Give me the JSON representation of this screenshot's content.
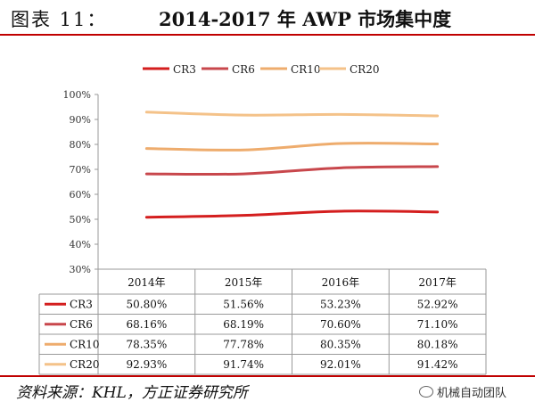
{
  "header": {
    "fig_label": "图表 11：",
    "title": "2014-2017 年 AWP 市场集中度"
  },
  "source": "资料来源：KHL，方正证券研究所",
  "watermark": "机械自动团队",
  "chart_data": {
    "type": "line",
    "title": "2014-2017 年 AWP 市场集中度",
    "categories": [
      "2014年",
      "2015年",
      "2016年",
      "2017年"
    ],
    "ylim": [
      30,
      100
    ],
    "yticks": [
      "30%",
      "40%",
      "50%",
      "60%",
      "70%",
      "80%",
      "90%",
      "100%"
    ],
    "legend_position": "top",
    "grid": false,
    "series": [
      {
        "name": "CR3",
        "values": [
          50.8,
          51.56,
          53.23,
          52.92
        ],
        "labels": [
          "50.80%",
          "51.56%",
          "53.23%",
          "52.92%"
        ],
        "color": "#d41e1e"
      },
      {
        "name": "CR6",
        "values": [
          68.16,
          68.19,
          70.6,
          71.1
        ],
        "labels": [
          "68.16%",
          "68.19%",
          "70.60%",
          "71.10%"
        ],
        "color": "#c8474c"
      },
      {
        "name": "CR10",
        "values": [
          78.35,
          77.78,
          80.35,
          80.18
        ],
        "labels": [
          "78.35%",
          "77.78%",
          "80.35%",
          "80.18%"
        ],
        "color": "#eeac6d"
      },
      {
        "name": "CR20",
        "values": [
          92.93,
          91.74,
          92.01,
          91.42
        ],
        "labels": [
          "92.93%",
          "91.74%",
          "92.01%",
          "91.42%"
        ],
        "color": "#f4c289"
      }
    ]
  }
}
